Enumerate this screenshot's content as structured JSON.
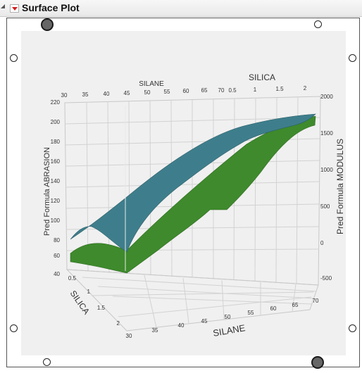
{
  "panel": {
    "title": "Surface Plot"
  },
  "icons": {
    "disclosure": "disclosure-triangle-icon",
    "menu": "red-menu-triangle-icon"
  },
  "colors": {
    "surface_top": "#3e7e8c",
    "surface_bottom": "#3e8a2c",
    "plot_background": "#f0f0f0"
  },
  "plot": {
    "back_top_axis_label_left": "SILANE",
    "back_top_axis_label_right": "SILICA",
    "back_top_silane_ticks": [
      "30",
      "35",
      "40",
      "45",
      "50",
      "55",
      "60",
      "65",
      "70"
    ],
    "back_top_silica_ticks": [
      "0.5",
      "1",
      "1.5",
      "2"
    ],
    "left_axis_label": "Pred Formula ABRASION",
    "left_ticks": [
      "220",
      "200",
      "180",
      "160",
      "140",
      "120",
      "100",
      "80",
      "60",
      "40"
    ],
    "right_axis_label": "Pred Formula MODULUS",
    "right_ticks": [
      "2000",
      "1500",
      "1000",
      "500",
      "0",
      "-500"
    ],
    "bottom_silica_label": "SILICA",
    "bottom_silica_ticks": [
      "0.5",
      "1",
      "1.5",
      "2"
    ],
    "bottom_silane_label": "SILANE",
    "bottom_silane_ticks": [
      "30",
      "35",
      "40",
      "45",
      "50",
      "55",
      "60",
      "65",
      "70"
    ]
  }
}
